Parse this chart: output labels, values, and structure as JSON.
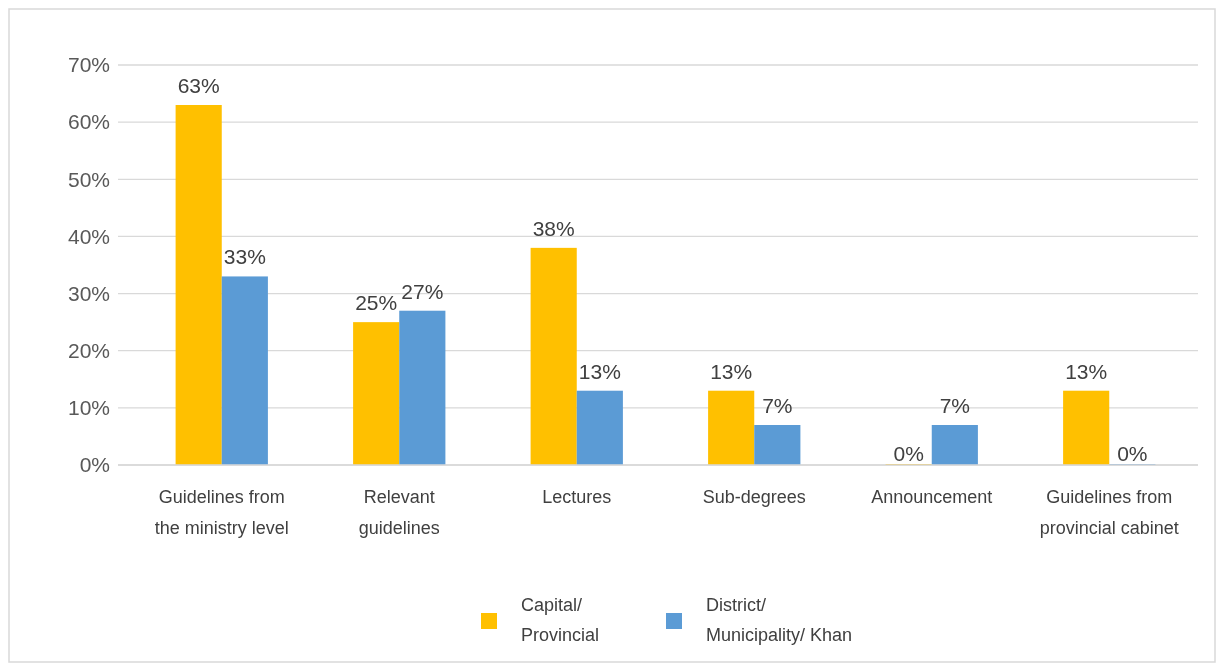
{
  "chart_data": {
    "type": "bar",
    "categories": [
      "Guidelines from the ministry level",
      "Relevant guidelines",
      "Lectures",
      "Sub-degrees",
      "Announcement",
      "Guidelines from provincial cabinet"
    ],
    "series": [
      {
        "name": "Capital/ Provincial",
        "color": "#ffc000",
        "values": [
          63,
          25,
          38,
          13,
          0,
          13
        ],
        "value_labels": [
          "63%",
          "25%",
          "38%",
          "13%",
          "0%",
          "13%"
        ]
      },
      {
        "name": "District/ Municipality/ Khan",
        "color": "#5b9bd5",
        "values": [
          33,
          27,
          13,
          7,
          7,
          0
        ],
        "value_labels": [
          "33%",
          "27%",
          "13%",
          "7%",
          "7%",
          "0%"
        ]
      }
    ],
    "ylim": [
      0,
      70
    ],
    "yticks": [
      {
        "value": 0,
        "label": "0%"
      },
      {
        "value": 10,
        "label": "10%"
      },
      {
        "value": 20,
        "label": "20%"
      },
      {
        "value": 30,
        "label": "30%"
      },
      {
        "value": 40,
        "label": "40%"
      },
      {
        "value": 50,
        "label": "50%"
      },
      {
        "value": 60,
        "label": "60%"
      },
      {
        "value": 70,
        "label": "70%"
      }
    ],
    "grid": "y",
    "legend": "bottom"
  }
}
